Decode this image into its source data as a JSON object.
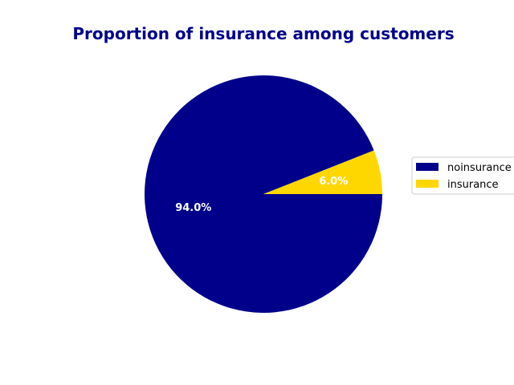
{
  "chart_data": {
    "type": "pie",
    "title": "Proportion of insurance among customers",
    "categories": [
      "noinsurance",
      "insurance"
    ],
    "values": [
      94.0,
      6.0
    ],
    "labels": [
      "94.0%",
      "6.0%"
    ],
    "colors": [
      "#00008b",
      "#ffd700"
    ],
    "title_color": "#00008b",
    "start_angle_deg": 0,
    "direction": "clockwise",
    "legend": {
      "placement": "right",
      "entries": [
        "noinsurance",
        "insurance"
      ]
    }
  }
}
